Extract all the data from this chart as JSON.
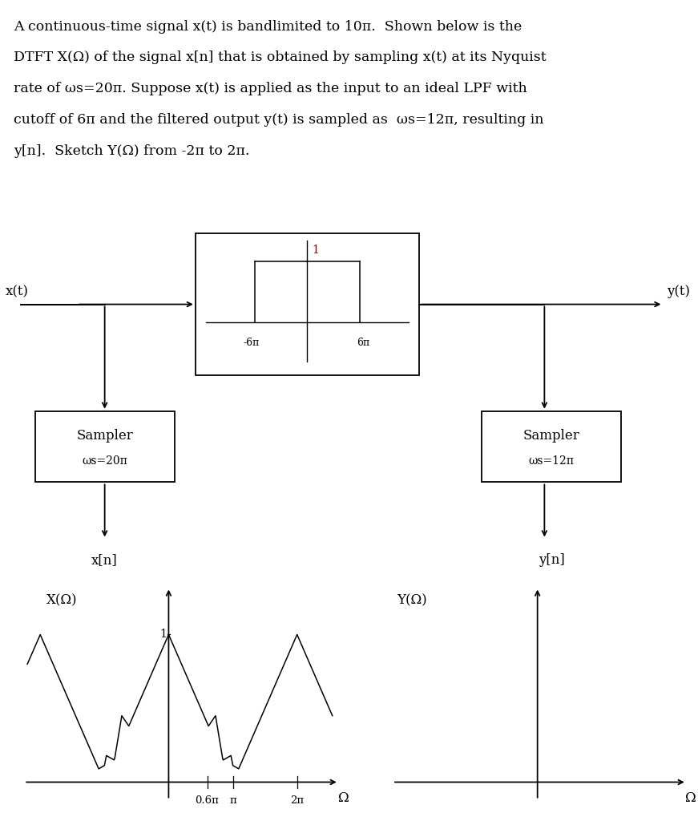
{
  "text_line1": "A continuous-time signal x(t) is bandlimited to 10π.  Shown below is the",
  "text_line2": "DTFT X(Ω) of the signal x[n] that is obtained by sampling x(t) at its Nyquist",
  "text_line3": "rate of ωs=20π. Suppose x(t) is applied as the input to an ideal LPF with",
  "text_line4": "cutoff of 6π and the filtered output y(t) is sampled as  ωs=12π, resulting in",
  "text_line5": "y[n].  Sketch Y(Ω) from -2π to 2π.",
  "lpf_label_1": "1",
  "lpf_minus": "-6π",
  "lpf_plus": "6π",
  "xt_label": "x(t)",
  "yt_label": "y(t)",
  "sampler1_line1": "Sampler",
  "sampler1_line2": "ωs=20π",
  "sampler2_line1": "Sampler",
  "sampler2_line2": "ωs=12π",
  "xn_label": "x[n]",
  "yn_label": "y[n]",
  "xomega_label": "X(Ω)",
  "yomega_label": "Y(Ω)",
  "omega_label": "Ω",
  "bg_color": "#ffffff",
  "line_color": "#000000",
  "text_color": "#000000",
  "dark_red": "#8B0000"
}
